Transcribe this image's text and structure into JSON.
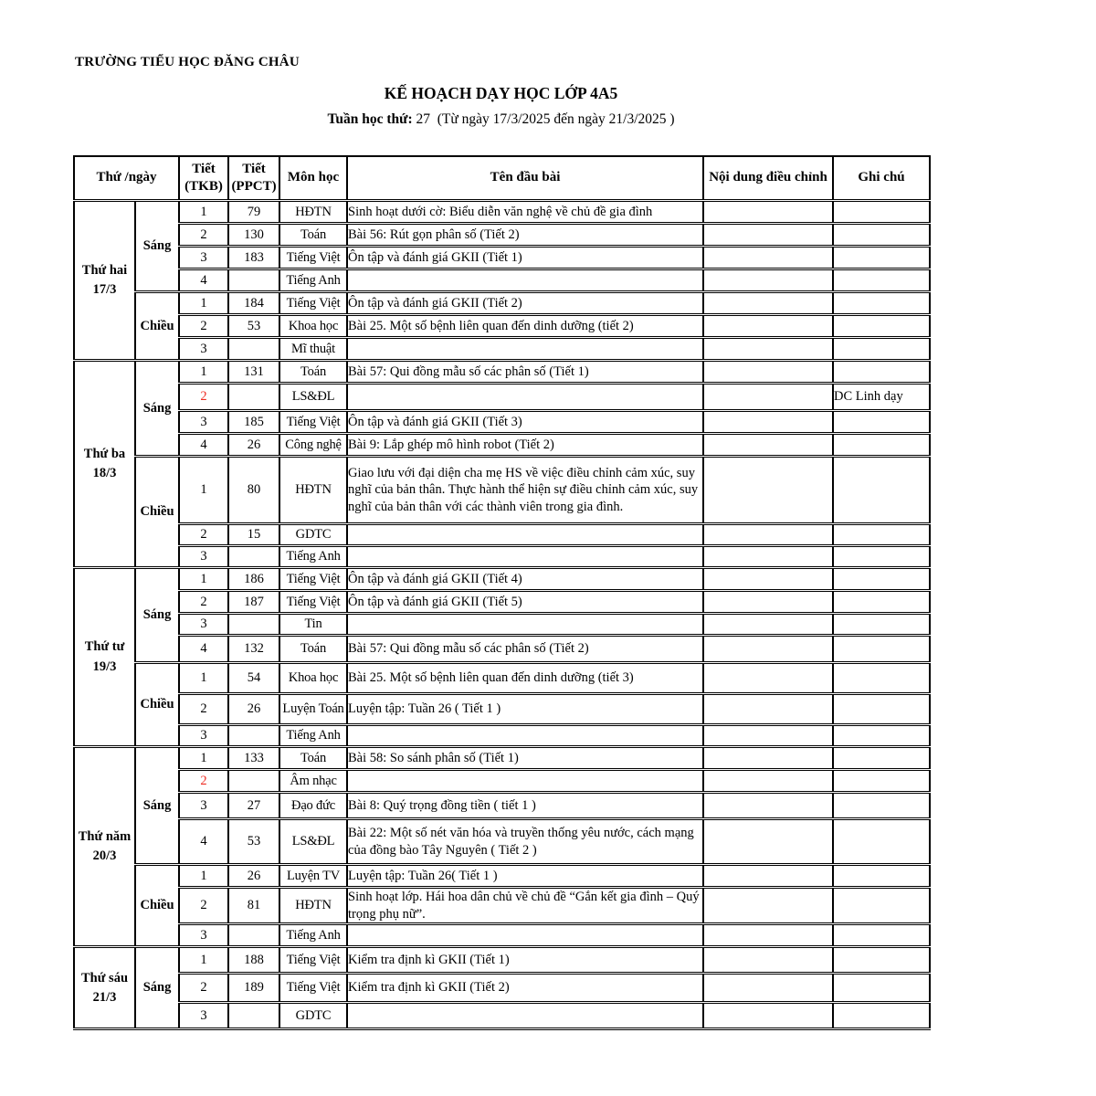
{
  "page": {
    "school_name": "TRƯỜNG TIỂU HỌC ĐĂNG CHÂU",
    "title": "KẾ HOẠCH DẠY HỌC LỚP 4A5",
    "week_label": "Tuần học thứ:",
    "week_number": "27",
    "week_range": "(Từ ngày 17/3/2025 đến ngày 21/3/2025 )"
  },
  "colors": {
    "text": "#000000",
    "accent_red": "#ee2c23"
  },
  "table": {
    "headers": {
      "day": "Thứ /ngày",
      "tkb": [
        "Tiết",
        "(TKB)"
      ],
      "ppct": [
        "Tiết",
        "(PPCT)"
      ],
      "subject": "Môn học",
      "title": "Tên đầu bài",
      "adjust": "Nội dung điều chỉnh",
      "note": "Ghi chú"
    },
    "days": [
      {
        "name": "Thứ hai",
        "date": "17/3",
        "sessions": [
          {
            "name": "Sáng",
            "periods": [
              {
                "tkb": "1",
                "tkb_red": false,
                "ppct": "79",
                "subject": "HĐTN",
                "title": "Sinh hoạt dưới cờ: Biểu diễn văn nghệ về chủ đề gia đình",
                "adjust": "",
                "note": ""
              },
              {
                "tkb": "2",
                "tkb_red": false,
                "ppct": "130",
                "subject": "Toán",
                "title": "Bài 56: Rút gọn phân số (Tiết 2)",
                "adjust": "",
                "note": ""
              },
              {
                "tkb": "3",
                "tkb_red": false,
                "ppct": "183",
                "subject": "Tiếng Việt",
                "title": "Ôn tập và đánh giá GKII (Tiết 1)",
                "adjust": "",
                "note": ""
              },
              {
                "tkb": "4",
                "tkb_red": false,
                "ppct": "",
                "subject": "Tiếng Anh",
                "title": "",
                "adjust": "",
                "note": ""
              }
            ]
          },
          {
            "name": "Chiều",
            "periods": [
              {
                "tkb": "1",
                "tkb_red": false,
                "ppct": "184",
                "subject": "Tiếng Việt",
                "title": "Ôn tập và đánh giá GKII (Tiết 2)",
                "adjust": "",
                "note": ""
              },
              {
                "tkb": "2",
                "tkb_red": false,
                "ppct": "53",
                "subject": "Khoa học",
                "title": "Bài 25.  Một số bệnh liên quan đến dinh dưỡng (tiết 2)",
                "adjust": "",
                "note": ""
              },
              {
                "tkb": "3",
                "tkb_red": false,
                "ppct": "",
                "subject": "Mĩ thuật",
                "title": "",
                "adjust": "",
                "note": ""
              }
            ]
          }
        ]
      },
      {
        "name": "Thứ ba",
        "date": "18/3",
        "sessions": [
          {
            "name": "Sáng",
            "periods": [
              {
                "tkb": "1",
                "tkb_red": false,
                "ppct": "131",
                "subject": "Toán",
                "title": "Bài 57: Qui đồng mẫu số các phân số (Tiết 1)",
                "adjust": "",
                "note": ""
              },
              {
                "tkb": "2",
                "tkb_red": true,
                "ppct": "",
                "subject": "LS&ĐL",
                "title": "",
                "adjust": "",
                "note": "DC Linh dạy"
              },
              {
                "tkb": "3",
                "tkb_red": false,
                "ppct": "185",
                "subject": "Tiếng Việt",
                "title": "Ôn tập và đánh giá GKII (Tiết 3)",
                "adjust": "",
                "note": ""
              },
              {
                "tkb": "4",
                "tkb_red": false,
                "ppct": "26",
                "subject": "Công nghệ",
                "title": "Bài 9: Lắp ghép mô hình robot (Tiết 2)",
                "adjust": "",
                "note": ""
              }
            ]
          },
          {
            "name": "Chiều",
            "periods": [
              {
                "tkb": "1",
                "tkb_red": false,
                "ppct": "80",
                "subject": "HĐTN",
                "title": "Giao lưu với đại diện cha mẹ HS về việc điều chỉnh cảm xúc, suy nghĩ của bản thân.  Thực hành thể hiện sự điều chỉnh cảm xúc, suy nghĩ của bản thân với các thành viên trong gia đình.",
                "adjust": "",
                "note": ""
              },
              {
                "tkb": "2",
                "tkb_red": false,
                "ppct": "15",
                "subject": "GDTC",
                "title": "",
                "adjust": "",
                "note": ""
              },
              {
                "tkb": "3",
                "tkb_red": false,
                "ppct": "",
                "subject": "Tiếng Anh",
                "title": "",
                "adjust": "",
                "note": ""
              }
            ]
          }
        ]
      },
      {
        "name": "Thứ tư",
        "date": "19/3",
        "sessions": [
          {
            "name": "Sáng",
            "periods": [
              {
                "tkb": "1",
                "tkb_red": false,
                "ppct": "186",
                "subject": "Tiếng Việt",
                "title": "Ôn tập và đánh giá GKII (Tiết 4)",
                "adjust": "",
                "note": ""
              },
              {
                "tkb": "2",
                "tkb_red": false,
                "ppct": "187",
                "subject": "Tiếng Việt",
                "title": "Ôn tập và đánh giá GKII (Tiết 5)",
                "adjust": "",
                "note": ""
              },
              {
                "tkb": "3",
                "tkb_red": false,
                "ppct": "",
                "subject": "Tin",
                "title": "",
                "adjust": "",
                "note": ""
              },
              {
                "tkb": "4",
                "tkb_red": false,
                "ppct": "132",
                "subject": "Toán",
                "title": "Bài 57: Qui đồng mẫu số các phân số  (Tiết 2)",
                "adjust": "",
                "note": ""
              }
            ]
          },
          {
            "name": "Chiều",
            "periods": [
              {
                "tkb": "1",
                "tkb_red": false,
                "ppct": "54",
                "subject": "Khoa học",
                "title": "Bài 25.  Một số bệnh liên quan đến dinh dưỡng  (tiết 3)",
                "adjust": "",
                "note": ""
              },
              {
                "tkb": "2",
                "tkb_red": false,
                "ppct": "26",
                "subject": "Luyện Toán",
                "title": "Luyện tập: Tuần 26 ( Tiết 1 )",
                "adjust": "",
                "note": ""
              },
              {
                "tkb": "3",
                "tkb_red": false,
                "ppct": "",
                "subject": "Tiếng Anh",
                "title": "",
                "adjust": "",
                "note": ""
              }
            ]
          }
        ]
      },
      {
        "name": "Thứ năm",
        "date": "20/3",
        "sessions": [
          {
            "name": "Sáng",
            "periods": [
              {
                "tkb": "1",
                "tkb_red": false,
                "ppct": "133",
                "subject": "Toán",
                "title": "Bài 58: So sánh phân số  (Tiết 1)",
                "adjust": "",
                "note": ""
              },
              {
                "tkb": "2",
                "tkb_red": true,
                "ppct": "",
                "subject": "Âm nhạc",
                "title": "",
                "adjust": "",
                "note": ""
              },
              {
                "tkb": "3",
                "tkb_red": false,
                "ppct": "27",
                "subject": "Đạo đức",
                "title": "Bài 8: Quý trọng đồng tiền (  tiết 1 )",
                "adjust": "",
                "note": ""
              },
              {
                "tkb": "4",
                "tkb_red": false,
                "ppct": "53",
                "subject": "LS&ĐL",
                "title": "Bài 22: Một số nét văn hóa và truyền thống yêu nước, cách mạng của đồng bào Tây Nguyên ( Tiết 2 )",
                "adjust": "",
                "note": ""
              }
            ]
          },
          {
            "name": "Chiều",
            "periods": [
              {
                "tkb": "1",
                "tkb_red": false,
                "ppct": "26",
                "subject": "Luyện TV",
                "title": "Luyện tập: Tuần 26( Tiết 1 )",
                "adjust": "",
                "note": ""
              },
              {
                "tkb": "2",
                "tkb_red": false,
                "ppct": "81",
                "subject": "HĐTN",
                "title": "Sinh hoạt lớp. Hái hoa dân chủ về chủ đề “Gắn kết gia đình – Quý trọng phụ nữ”.",
                "adjust": "",
                "note": ""
              },
              {
                "tkb": "3",
                "tkb_red": false,
                "ppct": "",
                "subject": "Tiếng Anh",
                "title": "",
                "adjust": "",
                "note": ""
              }
            ]
          }
        ]
      },
      {
        "name": "Thứ sáu",
        "date": "21/3",
        "cut_bottom": true,
        "sessions": [
          {
            "name": "Sáng",
            "periods": [
              {
                "tkb": "1",
                "tkb_red": false,
                "ppct": "188",
                "subject": "Tiếng Việt",
                "title": "Kiểm tra định kì GKII (Tiết 1)",
                "adjust": "",
                "note": ""
              },
              {
                "tkb": "2",
                "tkb_red": false,
                "ppct": "189",
                "subject": "Tiếng Việt",
                "title": "Kiểm tra định kì GKII (Tiết 2)",
                "adjust": "",
                "note": ""
              },
              {
                "tkb": "3",
                "tkb_red": false,
                "ppct": "",
                "subject": "GDTC",
                "title": "",
                "adjust": "",
                "note": ""
              }
            ]
          }
        ]
      }
    ]
  }
}
